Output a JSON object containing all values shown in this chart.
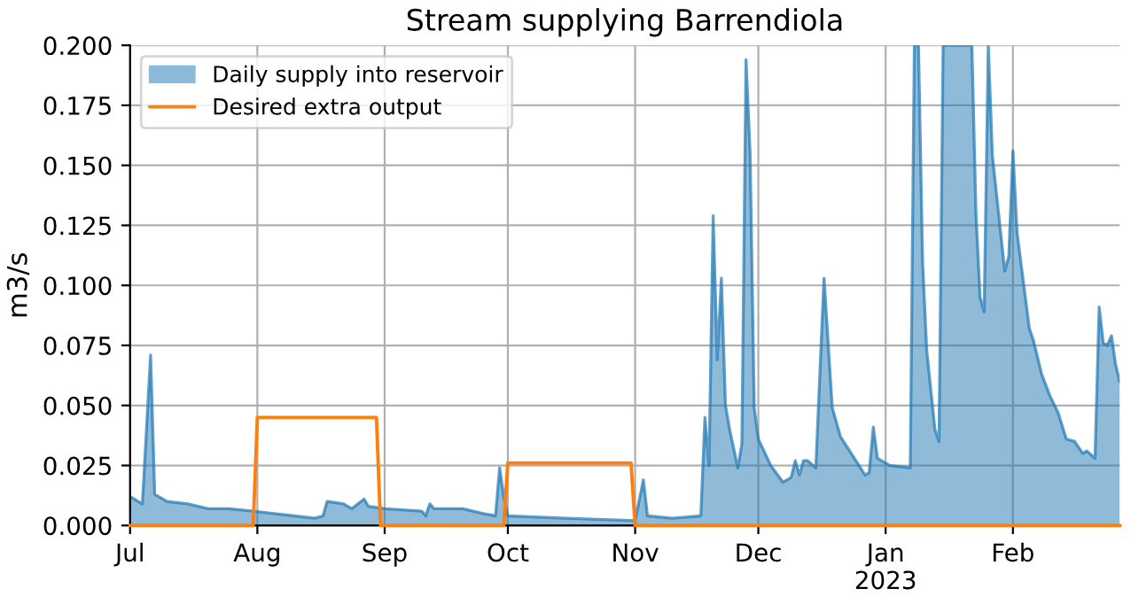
{
  "chart_data": {
    "type": "area",
    "title": "Stream supplying Barrendiola",
    "ylabel": "m3/s",
    "xlim": [
      "2022-07-01",
      "2023-02-27"
    ],
    "xticks": [
      {
        "value": "2022-07-01",
        "label": "Jul"
      },
      {
        "value": "2022-08-01",
        "label": "Aug"
      },
      {
        "value": "2022-09-01",
        "label": "Sep"
      },
      {
        "value": "2022-10-01",
        "label": "Oct"
      },
      {
        "value": "2022-11-01",
        "label": "Nov"
      },
      {
        "value": "2022-12-01",
        "label": "Dec"
      },
      {
        "value": "2023-01-01",
        "label": "Jan\n2023"
      },
      {
        "value": "2023-02-01",
        "label": "Feb"
      }
    ],
    "ylim": [
      0,
      0.2
    ],
    "yticks": [
      {
        "value": 0,
        "label": "0.000"
      },
      0.025,
      {
        "value": 0.05,
        "label": "0.050"
      },
      0.075,
      {
        "value": 0.1,
        "label": "0.100"
      },
      0.125,
      {
        "value": 0.15,
        "label": "0.150"
      },
      0.175,
      {
        "value": 0.2,
        "label": "0.200"
      }
    ],
    "grid": true,
    "legend": "top left",
    "series": [
      {
        "name": "Daily supply into reservoir",
        "color": "#1f77b4",
        "x": [
          "2022-07-01",
          "2022-07-04",
          "2022-07-06",
          "2022-07-07",
          "2022-07-10",
          "2022-07-15",
          "2022-07-20",
          "2022-07-25",
          "2022-07-31",
          "2022-08-05",
          "2022-08-10",
          "2022-08-15",
          "2022-08-17",
          "2022-08-18",
          "2022-08-22",
          "2022-08-24",
          "2022-08-27",
          "2022-08-28",
          "2022-09-01",
          "2022-09-10",
          "2022-09-11",
          "2022-09-12",
          "2022-09-13",
          "2022-09-20",
          "2022-09-25",
          "2022-09-28",
          "2022-09-29",
          "2022-09-30",
          "2022-10-01",
          "2022-10-15",
          "2022-11-01",
          "2022-11-03",
          "2022-11-04",
          "2022-11-10",
          "2022-11-17",
          "2022-11-18",
          "2022-11-19",
          "2022-11-20",
          "2022-11-21",
          "2022-11-22",
          "2022-11-23",
          "2022-11-24",
          "2022-11-26",
          "2022-11-27",
          "2022-11-28",
          "2022-11-29",
          "2022-11-30",
          "2022-12-01",
          "2022-12-04",
          "2022-12-07",
          "2022-12-09",
          "2022-12-10",
          "2022-12-11",
          "2022-12-12",
          "2022-12-13",
          "2022-12-15",
          "2022-12-17",
          "2022-12-19",
          "2022-12-21",
          "2022-12-27",
          "2022-12-28",
          "2022-12-29",
          "2022-12-30",
          "2023-01-01",
          "2023-01-02",
          "2023-01-07",
          "2023-01-08",
          "2023-01-09",
          "2023-01-10",
          "2023-01-11",
          "2023-01-13",
          "2023-01-14",
          "2023-01-15",
          "2023-01-22",
          "2023-01-23",
          "2023-01-24",
          "2023-01-25",
          "2023-01-26",
          "2023-01-27",
          "2023-01-29",
          "2023-01-30",
          "2023-01-31",
          "2023-02-01",
          "2023-02-02",
          "2023-02-05",
          "2023-02-06",
          "2023-02-08",
          "2023-02-10",
          "2023-02-12",
          "2023-02-14",
          "2023-02-16",
          "2023-02-18",
          "2023-02-19",
          "2023-02-21",
          "2023-02-22",
          "2023-02-23",
          "2023-02-24",
          "2023-02-25",
          "2023-02-26",
          "2023-02-27"
        ],
        "values": [
          0.012,
          0.009,
          0.071,
          0.013,
          0.01,
          0.009,
          0.007,
          0.007,
          0.006,
          0.005,
          0.004,
          0.003,
          0.004,
          0.01,
          0.009,
          0.007,
          0.011,
          0.008,
          0.007,
          0.006,
          0.004,
          0.009,
          0.007,
          0.007,
          0.005,
          0.004,
          0.024,
          0.012,
          0.004,
          0.003,
          0.002,
          0.019,
          0.004,
          0.003,
          0.004,
          0.045,
          0.025,
          0.129,
          0.069,
          0.103,
          0.05,
          0.04,
          0.024,
          0.034,
          0.194,
          0.155,
          0.049,
          0.036,
          0.025,
          0.018,
          0.02,
          0.027,
          0.021,
          0.027,
          0.027,
          0.024,
          0.103,
          0.049,
          0.037,
          0.021,
          0.022,
          0.041,
          0.028,
          0.026,
          0.025,
          0.024,
          0.2,
          0.2,
          0.11,
          0.073,
          0.04,
          0.035,
          0.2,
          0.2,
          0.13,
          0.095,
          0.089,
          0.2,
          0.154,
          0.122,
          0.106,
          0.112,
          0.156,
          0.122,
          0.082,
          0.077,
          0.063,
          0.054,
          0.047,
          0.036,
          0.035,
          0.03,
          0.031,
          0.028,
          0.091,
          0.076,
          0.075,
          0.079,
          0.067,
          0.06
        ]
      },
      {
        "name": "Desired extra output",
        "type": "line",
        "color": "#ff7f0e",
        "x": [
          "2022-07-01",
          "2022-07-31",
          "2022-08-01",
          "2022-08-30",
          "2022-08-31",
          "2022-09-30",
          "2022-10-01",
          "2022-10-31",
          "2022-11-01",
          "2023-02-27"
        ],
        "values": [
          0,
          0,
          0.045,
          0.045,
          0,
          0,
          0.026,
          0.026,
          0,
          0
        ]
      }
    ]
  }
}
